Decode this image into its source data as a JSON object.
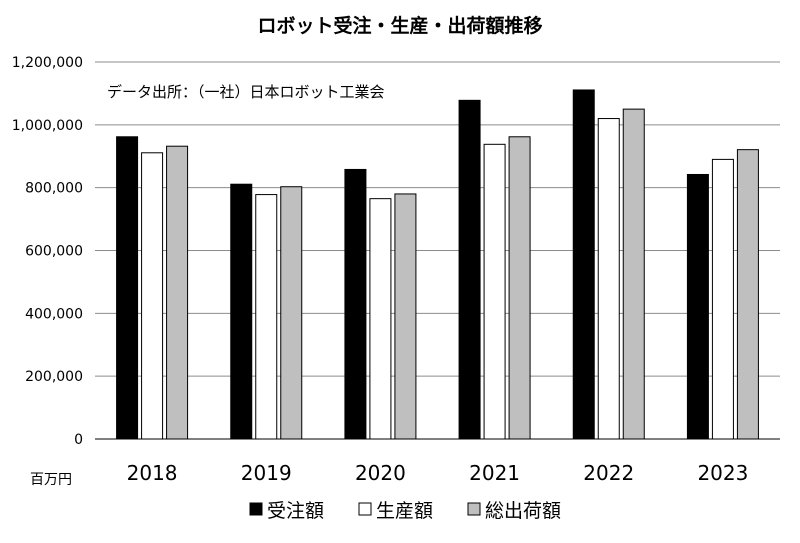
{
  "chart_data": {
    "type": "bar",
    "title": "ロボット受注・生産・出荷額推移",
    "source_note": "データ出所：（一社）日本ロボット工業会",
    "unit_label": "百万円",
    "categories": [
      "2018",
      "2019",
      "2020",
      "2021",
      "2022",
      "2023"
    ],
    "series": [
      {
        "name": "受注額",
        "color": "#000000",
        "values": [
          962000,
          811000,
          858000,
          1078000,
          1111000,
          842000
        ]
      },
      {
        "name": "生産額",
        "color": "#ffffff",
        "values": [
          911000,
          778000,
          765000,
          938000,
          1020000,
          890000
        ]
      },
      {
        "name": "総出荷額",
        "color": "#bfbfbf",
        "values": [
          932000,
          803000,
          780000,
          962000,
          1050000,
          921000
        ]
      }
    ],
    "ylim": [
      0,
      1200000
    ],
    "yticks": [
      "0",
      "200,000",
      "400,000",
      "600,000",
      "800,000",
      "1,000,000",
      "1,200,000"
    ],
    "grid": true,
    "legend_position": "bottom"
  }
}
